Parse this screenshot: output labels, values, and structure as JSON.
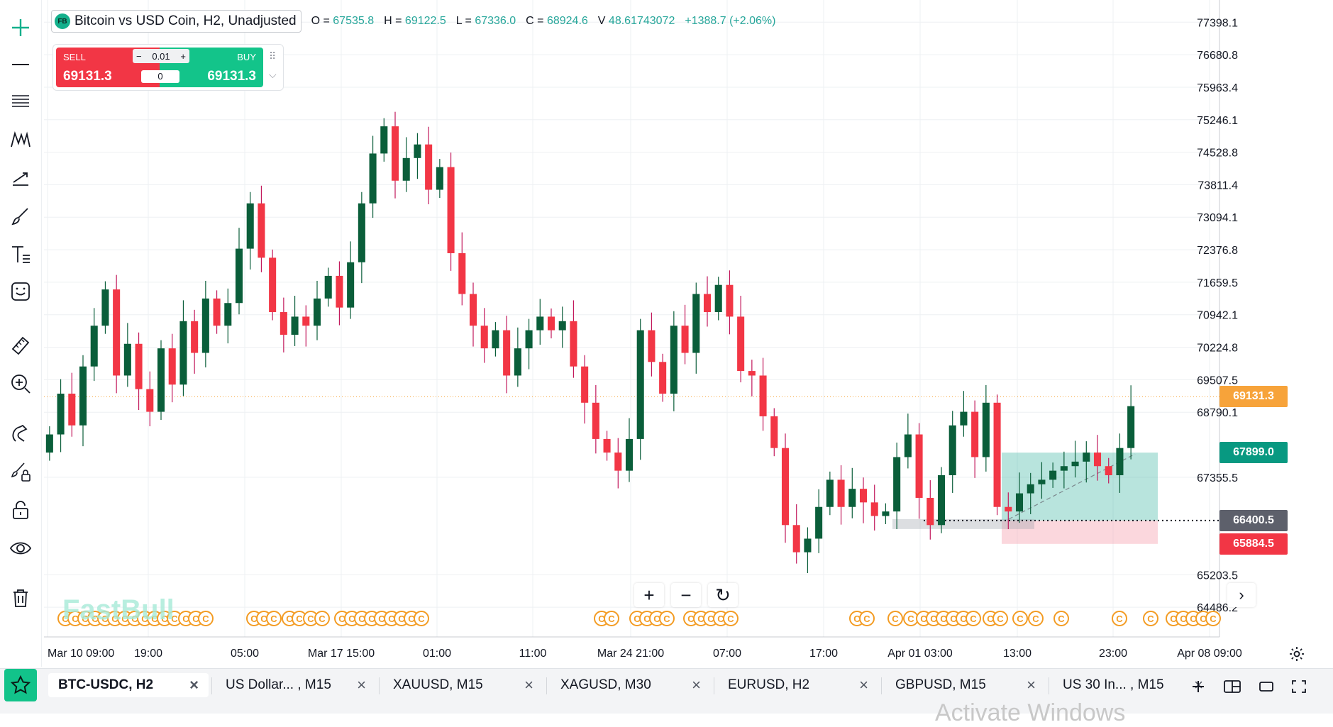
{
  "legend": {
    "logo_text": "FB",
    "symbol": "Bitcoin vs USD Coin, H2, Unadjusted",
    "ohlc": [
      {
        "k": "O = ",
        "v": "67535.8"
      },
      {
        "k": "H = ",
        "v": "69122.5"
      },
      {
        "k": "L = ",
        "v": "67336.0"
      },
      {
        "k": "C = ",
        "v": "68924.6"
      },
      {
        "k": "V ",
        "v": "48.61743072"
      }
    ],
    "change": "+1388.7 (+2.06%)"
  },
  "trade_panel": {
    "sell_label": "SELL",
    "sell_price": "69131.3",
    "buy_label": "BUY",
    "buy_price": "69131.3",
    "qty_minus": "−",
    "qty_value": "0.01",
    "qty_plus": "+",
    "lots_value": "0",
    "drag_glyph": "⠿",
    "chevron_glyph": "⌵"
  },
  "watermark": "FastBull",
  "nav": {
    "zoom_in": "+",
    "zoom_out": "−",
    "reset": "↻",
    "scroll_right": "›"
  },
  "price_pills": [
    {
      "label": "69131.3",
      "price": 69131.3,
      "color": "#f7a33a"
    },
    {
      "label": "67899.0",
      "price": 67899.0,
      "color": "#089981"
    },
    {
      "label": "66400.5",
      "price": 66400.5,
      "color": "#5d606b"
    },
    {
      "label": "65884.5",
      "price": 65884.5,
      "color": "#f23645"
    }
  ],
  "tabs": [
    {
      "label": "BTC-USDC, H2",
      "close": "×",
      "active": true
    },
    {
      "label": "US Dollar... , M15",
      "close": "×"
    },
    {
      "label": "XAUUSD, M15",
      "close": "×"
    },
    {
      "label": "XAGUSD, M30",
      "close": "×"
    },
    {
      "label": "EURUSD, H2",
      "close": "×"
    },
    {
      "label": "GBPUSD, M15",
      "close": "×"
    },
    {
      "label": "US 30 In... , M15",
      "close": "×"
    }
  ],
  "os_overlay": "Activate Windows",
  "chart_data": {
    "type": "candlestick",
    "series_name": "Bitcoin vs USD Coin, H2, Unadjusted",
    "y_range": [
      63800,
      77700
    ],
    "y_ticks": [
      77398.1,
      76680.8,
      75963.4,
      75246.1,
      74528.8,
      73811.4,
      73094.1,
      72376.8,
      71659.5,
      70942.1,
      70224.8,
      69507.5,
      68790.1,
      67355.5,
      65203.5,
      64486.2
    ],
    "x_ticks": [
      "Mar 10 09:00",
      "19:00",
      "05:00",
      "Mar 17 15:00",
      "01:00",
      "11:00",
      "Mar 24 21:00",
      "07:00",
      "17:00",
      "Apr 01 03:00",
      "13:00",
      "23:00",
      "Apr 08 09:00"
    ],
    "current_price": 69131.3,
    "position": {
      "entry": 66400.5,
      "take_profit": 67899.0,
      "stop_loss": 65884.5
    },
    "grid": true,
    "colors": {
      "up": "#089981",
      "down": "#f23645",
      "up_dark": "#0a5e3a",
      "down_dark": "#c2185b"
    },
    "closes": [
      68300,
      69200,
      68500,
      69800,
      70700,
      71500,
      69600,
      70300,
      69300,
      68800,
      70200,
      69400,
      70800,
      70100,
      71300,
      70700,
      71200,
      72400,
      73400,
      72200,
      71000,
      70500,
      70900,
      70700,
      71300,
      71800,
      71100,
      72100,
      73400,
      74500,
      75100,
      73900,
      74400,
      74700,
      73700,
      74200,
      72300,
      71400,
      70700,
      70200,
      70600,
      69600,
      70200,
      70600,
      70900,
      70600,
      70800,
      69800,
      69000,
      68200,
      67900,
      67500,
      68200,
      70600,
      69900,
      69200,
      70700,
      70100,
      71400,
      71000,
      71600,
      70900,
      69700,
      69600,
      68700,
      68000,
      66300,
      65700,
      66000,
      66700,
      67300,
      66700,
      67100,
      66800,
      66500,
      66600,
      67800,
      68300,
      66900,
      66300,
      67400,
      68500,
      68800,
      67800,
      69000,
      66700,
      66600,
      67000,
      67200,
      67300,
      67500,
      67600,
      67700,
      67900,
      67600,
      67400,
      68000,
      68924.6
    ]
  }
}
